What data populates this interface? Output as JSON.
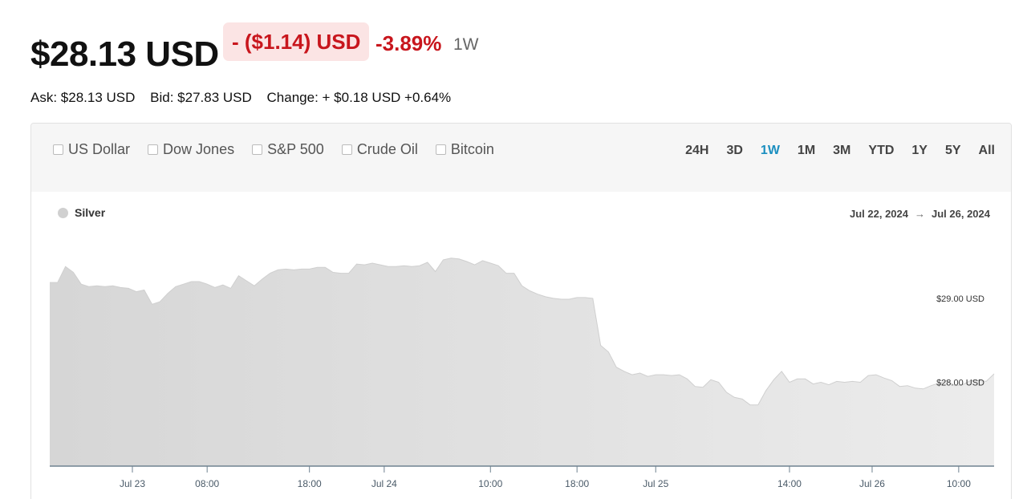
{
  "header": {
    "price": "$28.13 USD",
    "change_abs": "- ($1.14) USD",
    "change_pct": "-3.89%",
    "period": "1W"
  },
  "quote": {
    "ask": "Ask: $28.13 USD",
    "bid": "Bid: $27.83 USD",
    "change": "Change: + $0.18 USD +0.64%"
  },
  "compare": [
    {
      "label": "US Dollar",
      "checked": false
    },
    {
      "label": "Dow Jones",
      "checked": false
    },
    {
      "label": "S&P 500",
      "checked": false
    },
    {
      "label": "Crude Oil",
      "checked": false
    },
    {
      "label": "Bitcoin",
      "checked": false
    }
  ],
  "ranges": [
    "24H",
    "3D",
    "1W",
    "1M",
    "3M",
    "YTD",
    "1Y",
    "5Y",
    "All"
  ],
  "active_range": "1W",
  "colors": {
    "negative": "#c8161d",
    "negative_bg": "#fbe4e4",
    "active_range": "#1b8fc0",
    "area_fill": "#dedede",
    "series_dot": "#d0d0d0"
  },
  "chart_data": {
    "type": "area",
    "series": [
      {
        "name": "Silver",
        "x": [
          0,
          1,
          2,
          3,
          4,
          5,
          6,
          7,
          8,
          9,
          10,
          11,
          12,
          13,
          14,
          15,
          16,
          17,
          18,
          19,
          20,
          21,
          22,
          23,
          24,
          25,
          26,
          27,
          28,
          29,
          30,
          31,
          32,
          33,
          34,
          35,
          36,
          37,
          38,
          39,
          40,
          41,
          42,
          43,
          44,
          45,
          46,
          47,
          48,
          49,
          50,
          51,
          52,
          53,
          54,
          55,
          56,
          57,
          58,
          59,
          60,
          61,
          62,
          63,
          64,
          65,
          66,
          67,
          68,
          69,
          70,
          71,
          72,
          73,
          74,
          75,
          76,
          77,
          78,
          79,
          80,
          81,
          82,
          83,
          84,
          85,
          86,
          87,
          88,
          89,
          90,
          91,
          92,
          93,
          94,
          95,
          96,
          97,
          98,
          99,
          100,
          101,
          102,
          103,
          104,
          105,
          106,
          107,
          108,
          109,
          110,
          111,
          112,
          113,
          114,
          115,
          116,
          117,
          118,
          119,
          120
        ],
        "values": [
          29.19,
          29.19,
          29.38,
          29.31,
          29.17,
          29.14,
          29.15,
          29.14,
          29.15,
          29.13,
          29.12,
          29.08,
          29.1,
          28.93,
          28.96,
          29.06,
          29.14,
          29.17,
          29.2,
          29.2,
          29.17,
          29.13,
          29.16,
          29.12,
          29.27,
          29.21,
          29.15,
          29.23,
          29.3,
          29.34,
          29.35,
          29.34,
          29.35,
          29.35,
          29.37,
          29.37,
          29.31,
          29.3,
          29.3,
          29.41,
          29.4,
          29.42,
          29.4,
          29.38,
          29.38,
          29.39,
          29.38,
          29.39,
          29.43,
          29.32,
          29.46,
          29.48,
          29.47,
          29.44,
          29.4,
          29.45,
          29.42,
          29.39,
          29.3,
          29.3,
          29.15,
          29.09,
          29.05,
          29.02,
          29.0,
          28.99,
          28.99,
          29.01,
          29.01,
          29.0,
          28.44,
          28.36,
          28.18,
          28.13,
          28.09,
          28.11,
          28.07,
          28.09,
          28.09,
          28.08,
          28.09,
          28.04,
          27.95,
          27.94,
          28.03,
          28.0,
          27.88,
          27.82,
          27.8,
          27.73,
          27.73,
          27.9,
          28.03,
          28.13,
          28.0,
          28.04,
          28.04,
          27.98,
          28.0,
          27.97,
          28.01,
          28.0,
          28.01,
          28.0,
          28.08,
          28.09,
          28.05,
          28.02,
          27.95,
          27.96,
          27.93,
          27.92,
          27.96,
          27.99,
          28.02,
          27.96,
          27.97,
          28.02,
          28.02,
          28.01,
          28.1
        ]
      }
    ],
    "x_tick_labels": [
      "Jul 23",
      "08:00",
      "18:00",
      "Jul 24",
      "10:00",
      "18:00",
      "Jul 25",
      "14:00",
      "Jul 26",
      "10:00"
    ],
    "x_tick_positions": [
      10.5,
      20,
      33,
      42.5,
      56,
      67,
      77,
      94,
      104.5,
      115.5
    ],
    "y_tick_labels": [
      "$29.00 USD",
      "$28.00 USD"
    ],
    "y_ticks": [
      29.0,
      28.0
    ],
    "ylim": [
      27.0,
      29.65
    ],
    "xlim": [
      0,
      120
    ],
    "date_start": "Jul 22, 2024",
    "date_end": "Jul 26, 2024",
    "grid": false,
    "legend_position": "top-left"
  }
}
